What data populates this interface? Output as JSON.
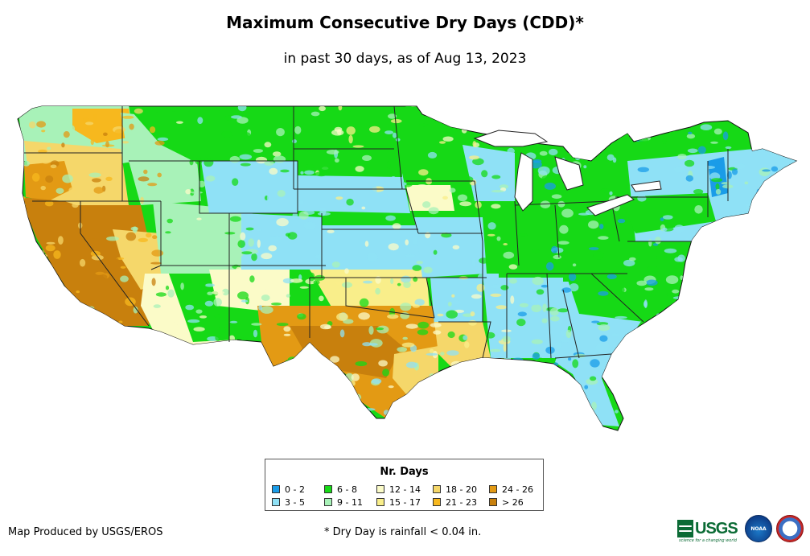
{
  "title": "Maximum Consecutive Dry Days (CDD)*",
  "subtitle": "in past 30 days, as of Aug 13, 2023",
  "legend": {
    "title": "Nr. Days",
    "items": [
      {
        "label": "0 - 2",
        "color": "#1a9ce8"
      },
      {
        "label": "3 - 5",
        "color": "#8fe1f6"
      },
      {
        "label": "6 - 8",
        "color": "#16d916"
      },
      {
        "label": "9 - 11",
        "color": "#a8f2b8"
      },
      {
        "label": "12 - 14",
        "color": "#fbfbc8"
      },
      {
        "label": "15 - 17",
        "color": "#f9ee8a"
      },
      {
        "label": "18 - 20",
        "color": "#f5d76a"
      },
      {
        "label": "21 - 23",
        "color": "#f7b81e"
      },
      {
        "label": "24 - 26",
        "color": "#e39a14"
      },
      {
        "label": "> 26",
        "color": "#c8800d"
      }
    ]
  },
  "credit": "Map Produced by USGS/EROS",
  "footnote": "* Dry Day is rainfall < 0.04 in.",
  "logos": {
    "usgs": "USGS",
    "usgs_tagline": "science for a changing world",
    "noaa": "NOAA"
  },
  "colors": {
    "state_border": "#222222",
    "background": "#ffffff"
  }
}
